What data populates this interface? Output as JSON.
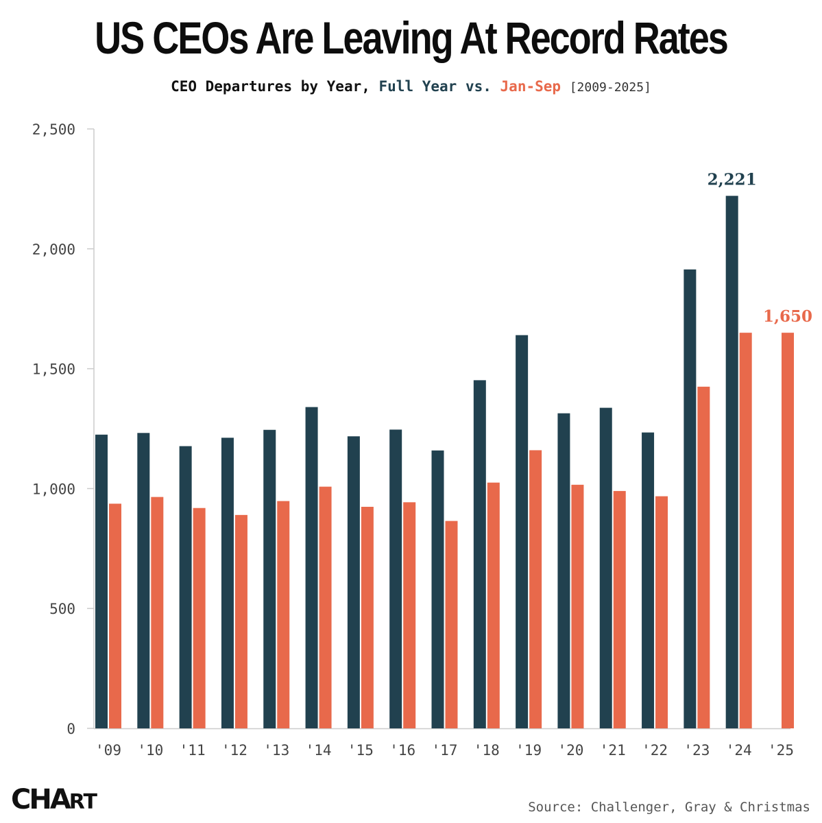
{
  "header": {
    "title": "US CEOs Are Leaving At Record Rates",
    "subtitle_prefix": "CEO Departures by Year, ",
    "subtitle_series1": "Full Year",
    "subtitle_vs": " vs. ",
    "subtitle_series2": "Jan-Sep",
    "subtitle_range": "[2009-2025]"
  },
  "footer": {
    "logo_main": "CHA",
    "logo_small": "RT",
    "logo_end": "R",
    "source": "Source: Challenger, Gray & Christmas"
  },
  "colors": {
    "full_year": "#21414f",
    "jan_sep": "#e8694b",
    "axis": "#cccccc"
  },
  "chart_data": {
    "type": "bar",
    "title": "US CEOs Are Leaving At Record Rates",
    "subtitle": "CEO Departures by Year, Full Year vs. Jan-Sep [2009-2025]",
    "categories": [
      "'09",
      "'10",
      "'11",
      "'12",
      "'13",
      "'14",
      "'15",
      "'16",
      "'17",
      "'18",
      "'19",
      "'20",
      "'21",
      "'22",
      "'23",
      "'24",
      "'25"
    ],
    "series": [
      {
        "name": "Full Year",
        "values": [
          1225,
          1232,
          1177,
          1212,
          1245,
          1340,
          1218,
          1246,
          1159,
          1452,
          1640,
          1314,
          1337,
          1234,
          1914,
          2221,
          null
        ]
      },
      {
        "name": "Jan-Sep",
        "values": [
          937,
          965,
          919,
          890,
          948,
          1008,
          924,
          943,
          865,
          1025,
          1160,
          1016,
          990,
          968,
          1425,
          1650,
          1650
        ]
      }
    ],
    "annotations": [
      {
        "series": "Full Year",
        "category": "'24",
        "text": "2,221"
      },
      {
        "series": "Jan-Sep",
        "category": "'25",
        "text": "1,650"
      }
    ],
    "yticks": [
      0,
      500,
      1000,
      1500,
      2000,
      2500
    ],
    "ytick_labels": [
      "0",
      "500",
      "1,000",
      "1,500",
      "2,000",
      "2,500"
    ],
    "ylim": [
      0,
      2500
    ],
    "grid": false,
    "xlabel": "",
    "ylabel": ""
  }
}
